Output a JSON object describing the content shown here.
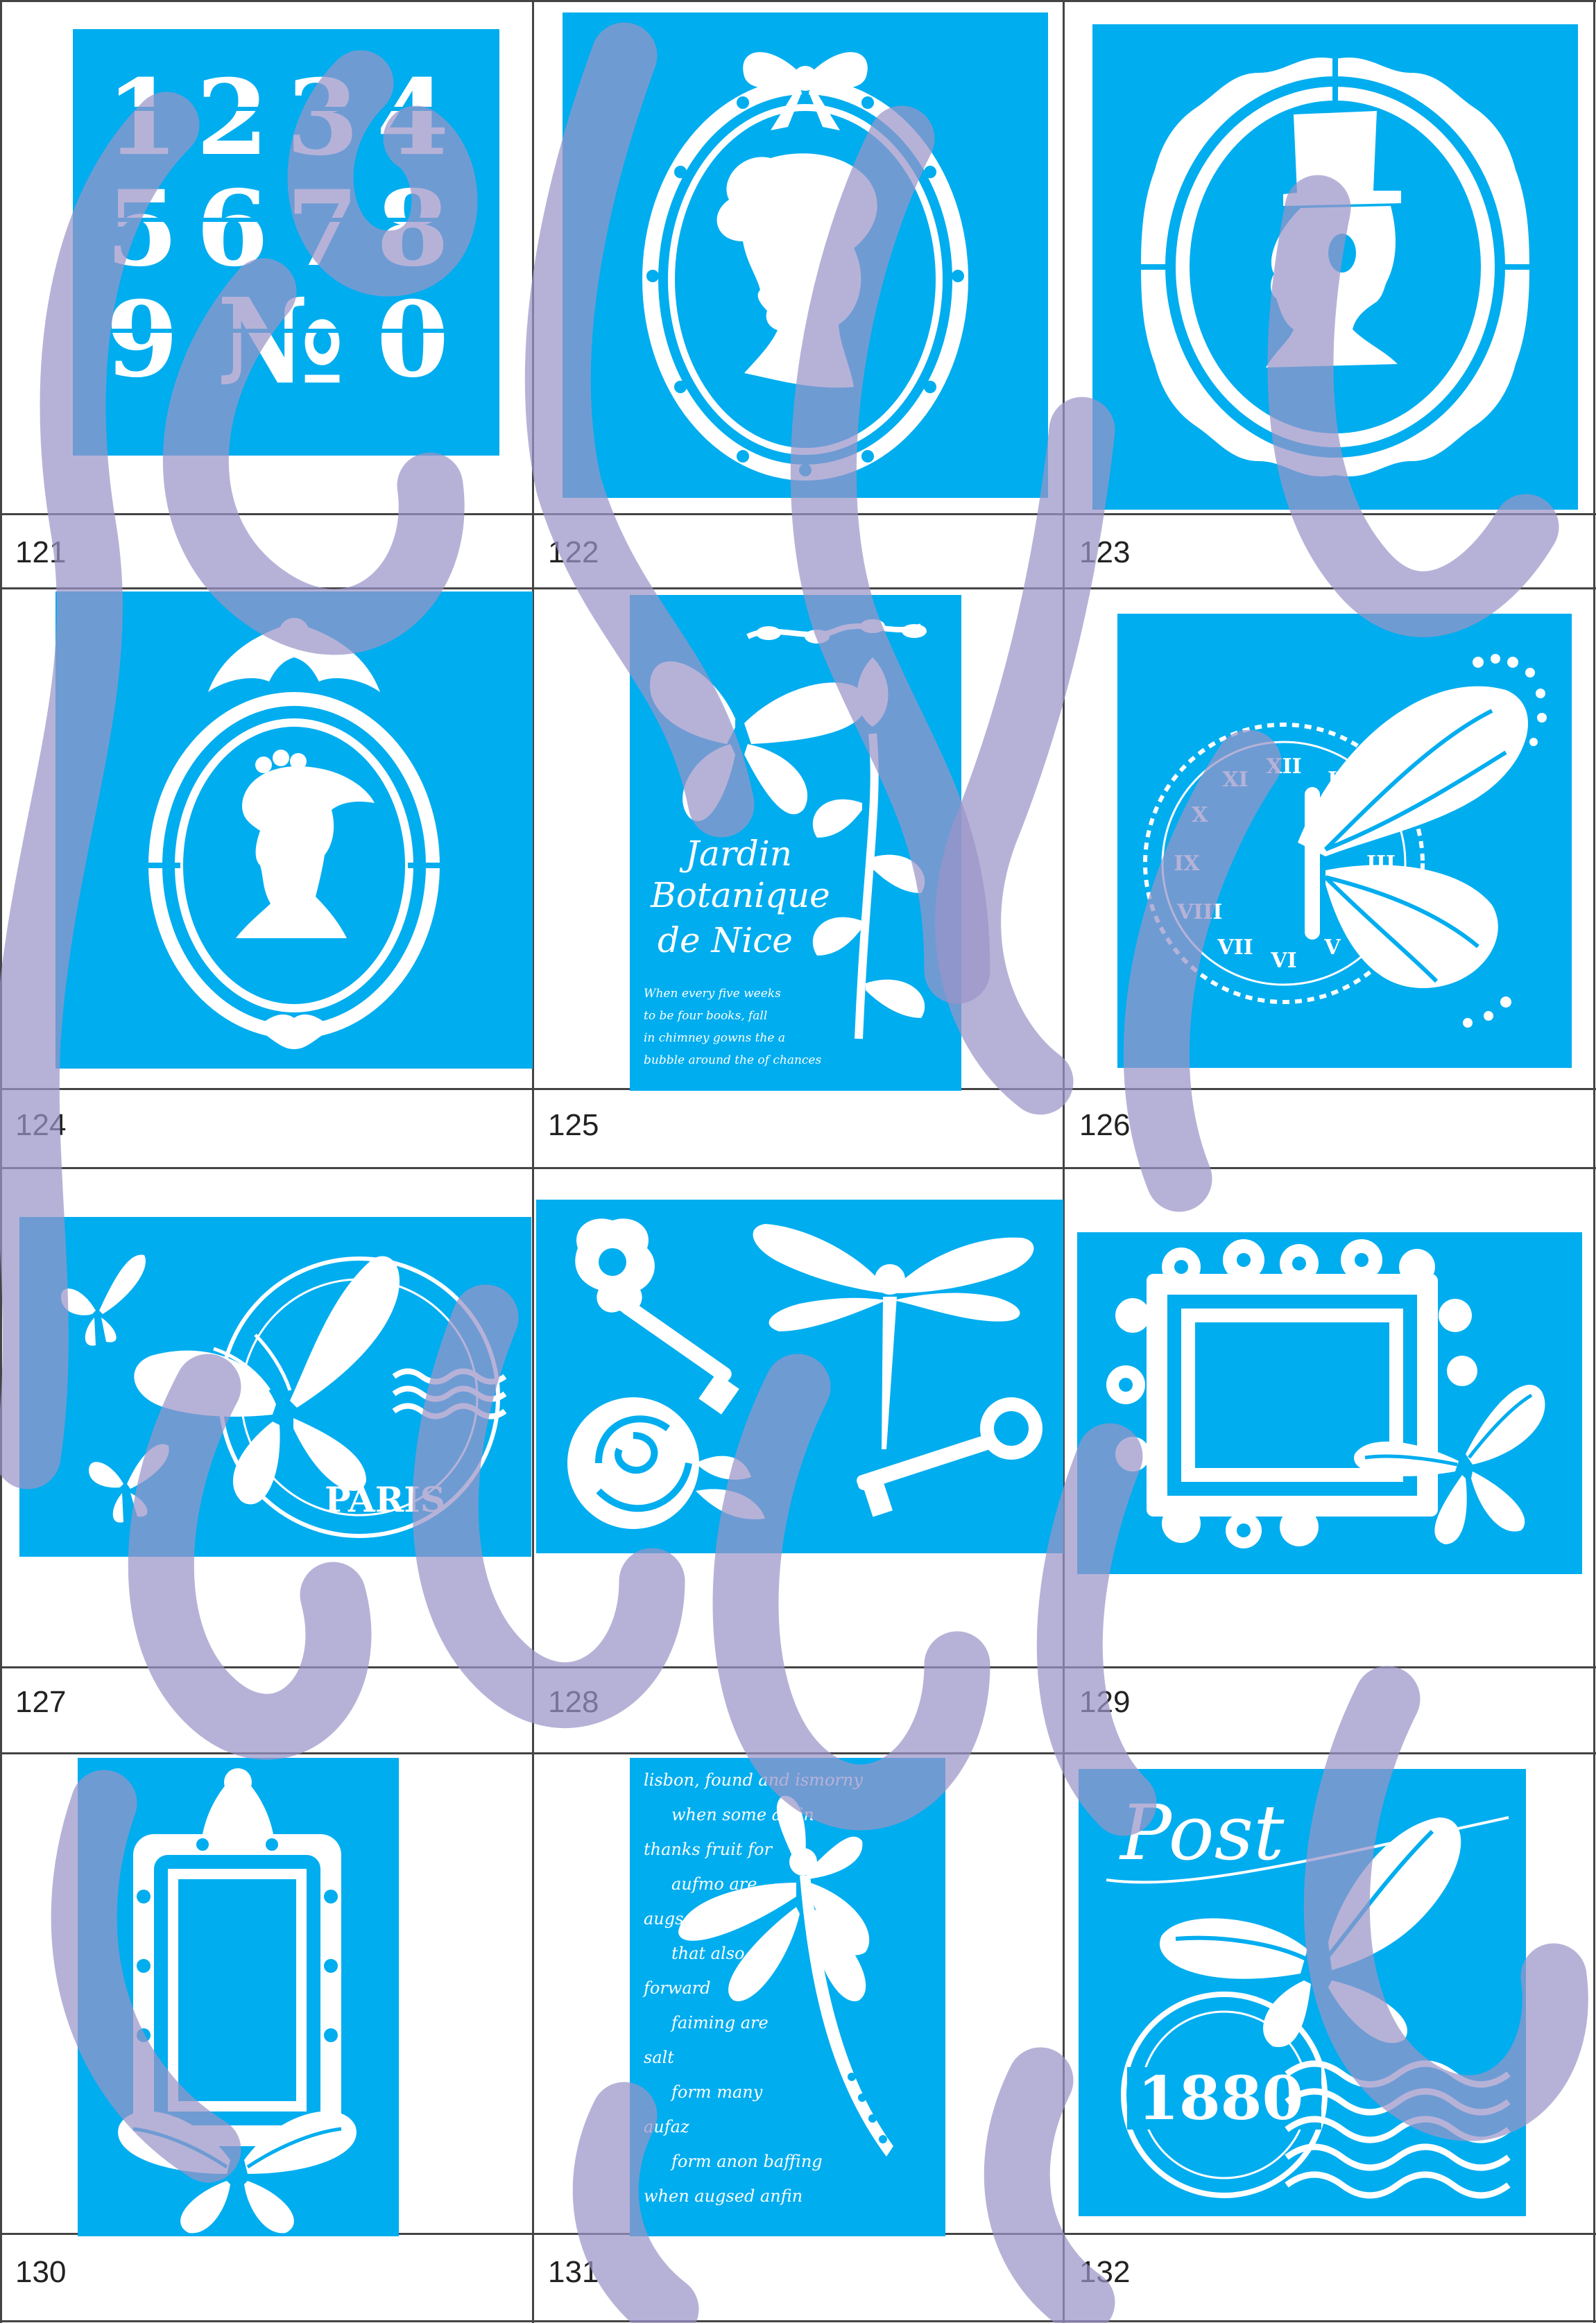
{
  "catalog": {
    "colors": {
      "stencil": "#00adef",
      "cut": "#ffffff",
      "watermark": "#9a94c8",
      "grid": "#444444"
    },
    "items": [
      {
        "number": "121",
        "motif": "numbers",
        "glyphs": [
          "1",
          "2",
          "3",
          "4",
          "5",
          "6",
          "7",
          "8",
          "9",
          "№",
          "0"
        ]
      },
      {
        "number": "122",
        "motif": "cameo-bow-frame"
      },
      {
        "number": "123",
        "motif": "cameo-top-hat"
      },
      {
        "number": "124",
        "motif": "cameo-lady-crown-frame"
      },
      {
        "number": "125",
        "motif": "butterfly-botanical",
        "text_lines": [
          "Jardin",
          "Botanique",
          "de Nice"
        ],
        "script_lines": [
          "When every five weeks",
          "to be four books, fall",
          "in chimney gowns the a",
          "bubble around the of chances"
        ]
      },
      {
        "number": "126",
        "motif": "clock-butterfly",
        "clock_numerals": [
          "XII",
          "I",
          "II",
          "III",
          "IV",
          "V",
          "VI",
          "VII",
          "VIII",
          "IX",
          "X",
          "XI"
        ]
      },
      {
        "number": "127",
        "motif": "paris-butterflies",
        "stamp_text": "PARIS"
      },
      {
        "number": "128",
        "motif": "key-dragonfly-rose"
      },
      {
        "number": "129",
        "motif": "baroque-frame-butterfly"
      },
      {
        "number": "130",
        "motif": "ornate-mirror-butterfly"
      },
      {
        "number": "131",
        "motif": "script-dragonfly",
        "script_lines": [
          "lisbon, found and ismorny",
          "when some anfin",
          "thanks fruit for",
          "aufmo are",
          "augsed sum",
          "that also",
          "forward",
          "faiming are",
          "salt",
          "form many",
          "aufaz",
          "form anon baffing",
          "when augsed anfin"
        ]
      },
      {
        "number": "132",
        "motif": "post-1880-butterfly",
        "post_text": "Post",
        "year_text": "1880"
      }
    ]
  }
}
